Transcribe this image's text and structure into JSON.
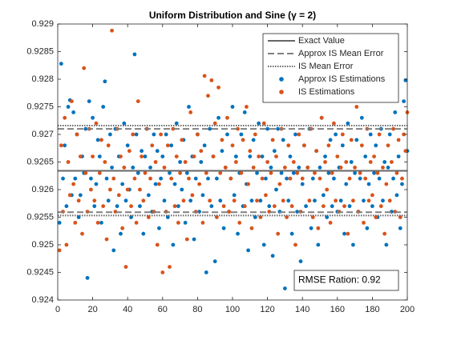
{
  "chart_data": {
    "type": "scatter",
    "title": "Uniform Distribution and Sine (γ = 2)",
    "annotation": "RMSE Ration: 0.92",
    "xlim": [
      0,
      200
    ],
    "xticks": [
      0,
      20,
      40,
      60,
      80,
      100,
      120,
      140,
      160,
      180,
      200
    ],
    "ylim": [
      0.924,
      0.929
    ],
    "yticks": [
      0.924,
      0.9245,
      0.925,
      0.9255,
      0.926,
      0.9265,
      0.927,
      0.9275,
      0.928,
      0.9285,
      0.929
    ],
    "grid": false,
    "legend": "upper right",
    "reference_lines": [
      {
        "name": "Exact Value",
        "style": "solid",
        "color": "#666666",
        "values": [
          0.92634
        ]
      },
      {
        "name": "Approx IS Mean Error",
        "style": "dashed",
        "color": "#808080",
        "values": [
          0.9271,
          0.92559
        ]
      },
      {
        "name": "IS Mean Error",
        "style": "dotted",
        "color": "#666666",
        "values": [
          0.92716,
          0.92553
        ]
      }
    ],
    "x": [
      1,
      2,
      3,
      4,
      5,
      6,
      7,
      8,
      9,
      10,
      11,
      12,
      13,
      14,
      15,
      16,
      17,
      18,
      19,
      20,
      21,
      22,
      23,
      24,
      25,
      26,
      27,
      28,
      29,
      30,
      31,
      32,
      33,
      34,
      35,
      36,
      37,
      38,
      39,
      40,
      41,
      42,
      43,
      44,
      45,
      46,
      47,
      48,
      49,
      50,
      51,
      52,
      53,
      54,
      55,
      56,
      57,
      58,
      59,
      60,
      61,
      62,
      63,
      64,
      65,
      66,
      67,
      68,
      69,
      70,
      71,
      72,
      73,
      74,
      75,
      76,
      77,
      78,
      79,
      80,
      81,
      82,
      83,
      84,
      85,
      86,
      87,
      88,
      89,
      90,
      91,
      92,
      93,
      94,
      95,
      96,
      97,
      98,
      99,
      100,
      101,
      102,
      103,
      104,
      105,
      106,
      107,
      108,
      109,
      110,
      111,
      112,
      113,
      114,
      115,
      116,
      117,
      118,
      119,
      120,
      121,
      122,
      123,
      124,
      125,
      126,
      127,
      128,
      129,
      130,
      131,
      132,
      133,
      134,
      135,
      136,
      137,
      138,
      139,
      140,
      141,
      142,
      143,
      144,
      145,
      146,
      147,
      148,
      149,
      150,
      151,
      152,
      153,
      154,
      155,
      156,
      157,
      158,
      159,
      160,
      161,
      162,
      163,
      164,
      165,
      166,
      167,
      168,
      169,
      170,
      171,
      172,
      173,
      174,
      175,
      176,
      177,
      178,
      179,
      180,
      181,
      182,
      183,
      184,
      185,
      186,
      187,
      188,
      189,
      190,
      191,
      192,
      193,
      194,
      195,
      196,
      197,
      198,
      199,
      200
    ],
    "series": [
      {
        "name": "Approx IS Estimations",
        "color": "#0072bd",
        "values": [
          0.9254,
          0.92828,
          0.9262,
          0.9268,
          0.9257,
          0.9275,
          0.92762,
          0.9259,
          0.9274,
          0.9262,
          0.927,
          0.9255,
          0.9259,
          0.9266,
          0.9263,
          0.9271,
          0.9244,
          0.9276,
          0.9262,
          0.9273,
          0.9257,
          0.9261,
          0.9269,
          0.9266,
          0.9254,
          0.9275,
          0.92796,
          0.9262,
          0.9258,
          0.927,
          0.9264,
          0.9249,
          0.9271,
          0.9257,
          0.9266,
          0.9252,
          0.9261,
          0.9272,
          0.9258,
          0.9268,
          0.926,
          0.9255,
          0.9264,
          0.92845,
          0.927,
          0.9263,
          0.9257,
          0.9267,
          0.9252,
          0.9266,
          0.9271,
          0.9259,
          0.9264,
          0.9256,
          0.927,
          0.9261,
          0.9267,
          0.9253,
          0.9262,
          0.9266,
          0.9258,
          0.927,
          0.9255,
          0.9263,
          0.9268,
          0.925,
          0.9261,
          0.9272,
          0.9257,
          0.9265,
          0.926,
          0.9269,
          0.9254,
          0.9263,
          0.9275,
          0.9258,
          0.9266,
          0.9251,
          0.9262,
          0.927,
          0.9256,
          0.9265,
          0.9259,
          0.9268,
          0.9245,
          0.9262,
          0.9271,
          0.9257,
          0.9266,
          0.9247,
          0.9262,
          0.9273,
          0.9258,
          0.9267,
          0.9253,
          0.9264,
          0.927,
          0.9256,
          0.9262,
          0.9275,
          0.9259,
          0.9266,
          0.9252,
          0.9263,
          0.927,
          0.9257,
          0.9274,
          0.9261,
          0.9249,
          0.9266,
          0.9258,
          0.9269,
          0.9255,
          0.9263,
          0.9272,
          0.9258,
          0.9266,
          0.925,
          0.9262,
          0.9271,
          0.9257,
          0.9264,
          0.9248,
          0.9267,
          0.926,
          0.9271,
          0.9256,
          0.9263,
          0.9269,
          0.92421,
          0.9262,
          0.9258,
          0.9266,
          0.9252,
          0.9263,
          0.927,
          0.9256,
          0.9264,
          0.9247,
          0.9261,
          0.9268,
          0.9257,
          0.9264,
          0.9271,
          0.9253,
          0.9262,
          0.9258,
          0.9267,
          0.925,
          0.9264,
          0.9273,
          0.9259,
          0.9266,
          0.9255,
          0.9263,
          0.9269,
          0.9257,
          0.9262,
          0.927,
          0.9256,
          0.9264,
          0.9258,
          0.9268,
          0.9252,
          0.9261,
          0.9272,
          0.9257,
          0.9265,
          0.925,
          0.9263,
          0.9269,
          0.9256,
          0.9262,
          0.9273,
          0.9258,
          0.9266,
          0.9253,
          0.9261,
          0.927,
          0.9257,
          0.9263,
          0.9268,
          0.9255,
          0.9262,
          0.9271,
          0.9258,
          0.9265,
          0.925,
          0.9264,
          0.927,
          0.9256,
          0.9262,
          0.9274,
          0.9259,
          0.9266,
          0.9253,
          0.9261,
          0.9276,
          0.92798,
          0.9267
        ]
      },
      {
        "name": "IS Estimations",
        "color": "#d95319",
        "values": [
          0.9249,
          0.9268,
          0.9256,
          0.9273,
          0.925,
          0.9265,
          0.9259,
          0.9276,
          0.9261,
          0.9254,
          0.927,
          0.9258,
          0.9266,
          0.9252,
          0.9282,
          0.9263,
          0.9256,
          0.9271,
          0.926,
          0.9266,
          0.9258,
          0.9272,
          0.9254,
          0.9263,
          0.9269,
          0.9257,
          0.9265,
          0.9251,
          0.9268,
          0.926,
          0.92888,
          0.9262,
          0.9256,
          0.9271,
          0.9259,
          0.9266,
          0.9253,
          0.9264,
          0.9246,
          0.926,
          0.9267,
          0.9257,
          0.927,
          0.9262,
          0.9254,
          0.9276,
          0.926,
          0.9266,
          0.9258,
          0.9263,
          0.9271,
          0.9255,
          0.9262,
          0.9268,
          0.9256,
          0.9265,
          0.925,
          0.9261,
          0.927,
          0.9245,
          0.9264,
          0.9256,
          0.9268,
          0.9246,
          0.9262,
          0.9271,
          0.9257,
          0.9266,
          0.9254,
          0.9263,
          0.9269,
          0.9258,
          0.9265,
          0.9251,
          0.9262,
          0.9274,
          0.9259,
          0.9266,
          0.9256,
          0.927,
          0.9261,
          0.9267,
          0.9254,
          0.92806,
          0.9263,
          0.9277,
          0.9258,
          0.92798,
          0.9266,
          0.9272,
          0.9255,
          0.92785,
          0.9263,
          0.9269,
          0.9257,
          0.9264,
          0.9273,
          0.9256,
          0.9262,
          0.9268,
          0.9258,
          0.9265,
          0.9271,
          0.9254,
          0.9263,
          0.9269,
          0.9257,
          0.9275,
          0.9261,
          0.9267,
          0.9253,
          0.9264,
          0.927,
          0.9258,
          0.9266,
          0.9255,
          0.9262,
          0.9272,
          0.9259,
          0.9265,
          0.9256,
          0.9263,
          0.9269,
          0.9257,
          0.9266,
          0.9252,
          0.9261,
          0.9271,
          0.9258,
          0.9264,
          0.9255,
          0.9268,
          0.9262,
          0.9257,
          0.9265,
          0.925,
          0.9263,
          0.927,
          0.9256,
          0.9262,
          0.9268,
          0.9245,
          0.9264,
          0.9258,
          0.9271,
          0.9255,
          0.9263,
          0.9267,
          0.9253,
          0.9262,
          0.9273,
          0.9257,
          0.9265,
          0.926,
          0.9268,
          0.9254,
          0.9263,
          0.9272,
          0.9258,
          0.9266,
          0.9256,
          0.9264,
          0.927,
          0.9257,
          0.9265,
          0.9252,
          0.9262,
          0.9269,
          0.9258,
          0.9264,
          0.9275,
          0.9256,
          0.9263,
          0.9268,
          0.9254,
          0.9262,
          0.9271,
          0.9258,
          0.9265,
          0.9259,
          0.9266,
          0.9255,
          0.9263,
          0.927,
          0.9257,
          0.9264,
          0.9252,
          0.9261,
          0.9268,
          0.9258,
          0.9265,
          0.9271,
          0.9256,
          0.9263,
          0.9269,
          0.9255,
          0.9262,
          0.927,
          0.9267,
          0.9274
        ]
      }
    ]
  }
}
